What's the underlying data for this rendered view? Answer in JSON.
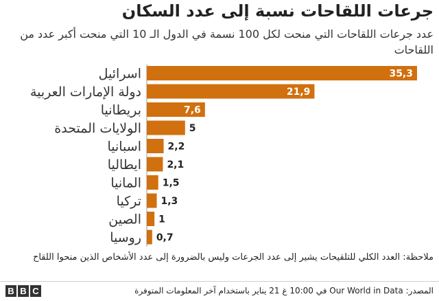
{
  "header": {
    "title": "جرعات اللقاحات نسبة إلى عدد السكان",
    "subtitle": "عدد جرعات اللقاحات التي منحت لكل 100 نسمة في الدول الـ 10 التي منحت أكبر عدد من اللقاحات"
  },
  "chart_data": {
    "type": "bar",
    "orientation": "horizontal",
    "categories": [
      "اسرائيل",
      "دولة الإمارات العربية",
      "بريطانيا",
      "الولايات المتحدة",
      "اسبانيا",
      "ايطاليا",
      "المانيا",
      "تركيا",
      "الصين",
      "روسيا"
    ],
    "values": [
      35.3,
      21.9,
      7.6,
      5,
      2.2,
      2.1,
      1.5,
      1.3,
      1,
      0.7
    ],
    "value_labels": [
      "35,3",
      "21,9",
      "7,6",
      "5",
      "2,2",
      "2,1",
      "1,5",
      "1,3",
      "1",
      "0,7"
    ],
    "xlim": [
      0,
      35.3
    ],
    "bar_color": "#d1700e",
    "grid": false
  },
  "note": "ملاحظة: العدد الكلي للتلقيحات يشير إلى عدد الجرعات وليس بالضرورة إلى عدد الأشخاص الذين منحوا اللقاح",
  "footer": {
    "source": "المصدر: Our World in Data في 10:00 غ 21 يناير باستخدام آخر المعلومات المتوفرة",
    "logo_letters": [
      "B",
      "B",
      "C"
    ]
  }
}
